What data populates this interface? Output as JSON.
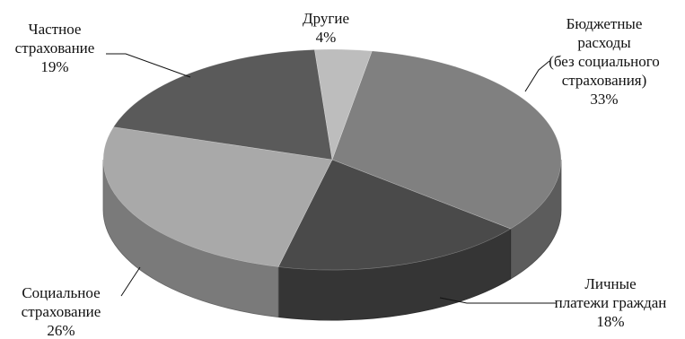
{
  "chart_data": {
    "type": "pie",
    "style": "3d",
    "slices": [
      {
        "label": "Бюджетные расходы (без социального страхования)",
        "value": 33,
        "color": "#808080"
      },
      {
        "label": "Личные платежи граждан",
        "value": 18,
        "color": "#4a4a4a"
      },
      {
        "label": "Социальное страхование",
        "value": 26,
        "color": "#a9a9a9"
      },
      {
        "label": "Частное страхование",
        "value": 19,
        "color": "#5a5a5a"
      },
      {
        "label": "Другие",
        "value": 4,
        "color": "#bdbdbd"
      }
    ],
    "labels": {
      "budget": {
        "lines": [
          "Бюджетные",
          "расходы",
          "(без социального",
          "страхования)"
        ],
        "pct": "33%"
      },
      "personal": {
        "lines": [
          "Личные",
          "платежи граждан"
        ],
        "pct": "18%"
      },
      "social": {
        "lines": [
          "Социальное",
          "страхование"
        ],
        "pct": "26%"
      },
      "private": {
        "lines": [
          "Частное",
          "страхование"
        ],
        "pct": "19%"
      },
      "other": {
        "lines": [
          "Другие"
        ],
        "pct": "4%"
      }
    }
  }
}
